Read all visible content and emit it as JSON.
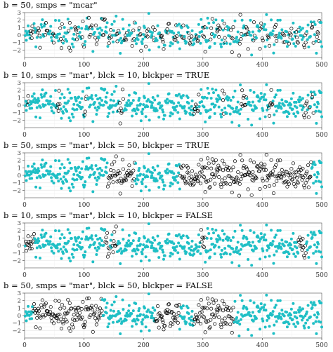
{
  "chart_data": [
    {
      "type": "scatter",
      "title": "b = 50, smps = \"mcar\"",
      "xlim": [
        0,
        500
      ],
      "ylim": [
        -3,
        3
      ],
      "xticks": [
        0,
        100,
        200,
        300,
        400,
        500
      ],
      "yticks": [
        -2,
        -1,
        0,
        1,
        2,
        3
      ],
      "grid": true,
      "legend": "none",
      "n": 500,
      "block_size": 50,
      "missing_ranges": [
        [
          10,
          15
        ],
        [
          22,
          26
        ],
        [
          35,
          39
        ],
        [
          48,
          51
        ],
        [
          60,
          64
        ],
        [
          74,
          77
        ],
        [
          85,
          90
        ],
        [
          97,
          100
        ],
        [
          108,
          113
        ],
        [
          119,
          122
        ],
        [
          131,
          135
        ],
        [
          142,
          146
        ],
        [
          155,
          158
        ],
        [
          168,
          172
        ],
        [
          181,
          185
        ],
        [
          193,
          196
        ],
        [
          204,
          208
        ],
        [
          216,
          219
        ],
        [
          229,
          234
        ],
        [
          240,
          243
        ],
        [
          252,
          256
        ],
        [
          265,
          268
        ],
        [
          276,
          281
        ],
        [
          289,
          292
        ],
        [
          300,
          304
        ],
        [
          313,
          316
        ],
        [
          324,
          329
        ],
        [
          336,
          339
        ],
        [
          347,
          351
        ],
        [
          361,
          365
        ],
        [
          372,
          377
        ],
        [
          385,
          388
        ],
        [
          396,
          401
        ],
        [
          409,
          412
        ],
        [
          421,
          425
        ],
        [
          434,
          438
        ],
        [
          445,
          449
        ],
        [
          457,
          461
        ],
        [
          470,
          474
        ],
        [
          483,
          486
        ],
        [
          492,
          496
        ]
      ],
      "series": [
        {
          "name": "",
          "style": "filled",
          "color": "#1fbfc5"
        },
        {
          "name": "",
          "style": "open",
          "color": "#000000"
        }
      ]
    },
    {
      "type": "scatter",
      "title": "b = 10, smps = \"mar\", blck = 10, blckper = TRUE",
      "xlim": [
        0,
        500
      ],
      "ylim": [
        -3,
        3
      ],
      "xticks": [
        0,
        100,
        200,
        300,
        400,
        500
      ],
      "yticks": [
        -2,
        -1,
        0,
        1,
        2,
        3
      ],
      "grid": true,
      "legend": "none",
      "n": 500,
      "block_size": 10,
      "missing_ranges": [
        [
          5,
          7
        ],
        [
          55,
          59
        ],
        [
          101,
          104
        ],
        [
          159,
          166
        ],
        [
          285,
          288
        ],
        [
          290,
          293
        ],
        [
          333,
          336
        ],
        [
          365,
          373
        ],
        [
          411,
          417
        ],
        [
          470,
          475
        ],
        [
          478,
          480
        ],
        [
          484,
          486
        ]
      ],
      "series": [
        {
          "name": "",
          "style": "filled",
          "color": "#1fbfc5"
        },
        {
          "name": "",
          "style": "open",
          "color": "#000000"
        }
      ]
    },
    {
      "type": "scatter",
      "title": "b = 50, smps = \"mar\", blck = 50, blckper = TRUE",
      "xlim": [
        0,
        500
      ],
      "ylim": [
        -3,
        3
      ],
      "xticks": [
        0,
        100,
        200,
        300,
        400,
        500
      ],
      "yticks": [
        -2,
        -1,
        0,
        1,
        2,
        3
      ],
      "grid": true,
      "legend": "none",
      "n": 500,
      "block_size": 50,
      "missing_ranges": [
        [
          140,
          185
        ],
        [
          262,
          482
        ]
      ],
      "series": [
        {
          "name": "",
          "style": "filled",
          "color": "#1fbfc5"
        },
        {
          "name": "",
          "style": "open",
          "color": "#000000"
        }
      ]
    },
    {
      "type": "scatter",
      "title": "b = 10, smps = \"mar\", blck = 10, blckper = FALSE",
      "xlim": [
        0,
        500
      ],
      "ylim": [
        -3,
        3
      ],
      "xticks": [
        0,
        100,
        200,
        300,
        400,
        500
      ],
      "yticks": [
        -2,
        -1,
        0,
        1,
        2,
        3
      ],
      "grid": true,
      "legend": "none",
      "n": 500,
      "block_size": 10,
      "missing_ranges": [
        [
          2,
          16
        ],
        [
          136,
          143
        ],
        [
          148,
          155
        ],
        [
          297,
          303
        ],
        [
          461,
          473
        ]
      ],
      "series": [
        {
          "name": "",
          "style": "filled",
          "color": "#1fbfc5"
        },
        {
          "name": "",
          "style": "open",
          "color": "#000000"
        }
      ]
    },
    {
      "type": "scatter",
      "title": "b = 50, smps = \"mar\", blck = 50, blckper = FALSE",
      "xlim": [
        0,
        500
      ],
      "ylim": [
        -3,
        3
      ],
      "xticks": [
        0,
        100,
        200,
        300,
        400,
        500
      ],
      "yticks": [
        -2,
        -1,
        0,
        1,
        2,
        3
      ],
      "grid": true,
      "legend": "none",
      "n": 500,
      "block_size": 50,
      "missing_ranges": [
        [
          15,
          130
        ],
        [
          220,
          260
        ],
        [
          285,
          352
        ]
      ],
      "series": [
        {
          "name": "",
          "style": "filled",
          "color": "#1fbfc5"
        },
        {
          "name": "",
          "style": "open",
          "color": "#000000"
        }
      ]
    }
  ]
}
